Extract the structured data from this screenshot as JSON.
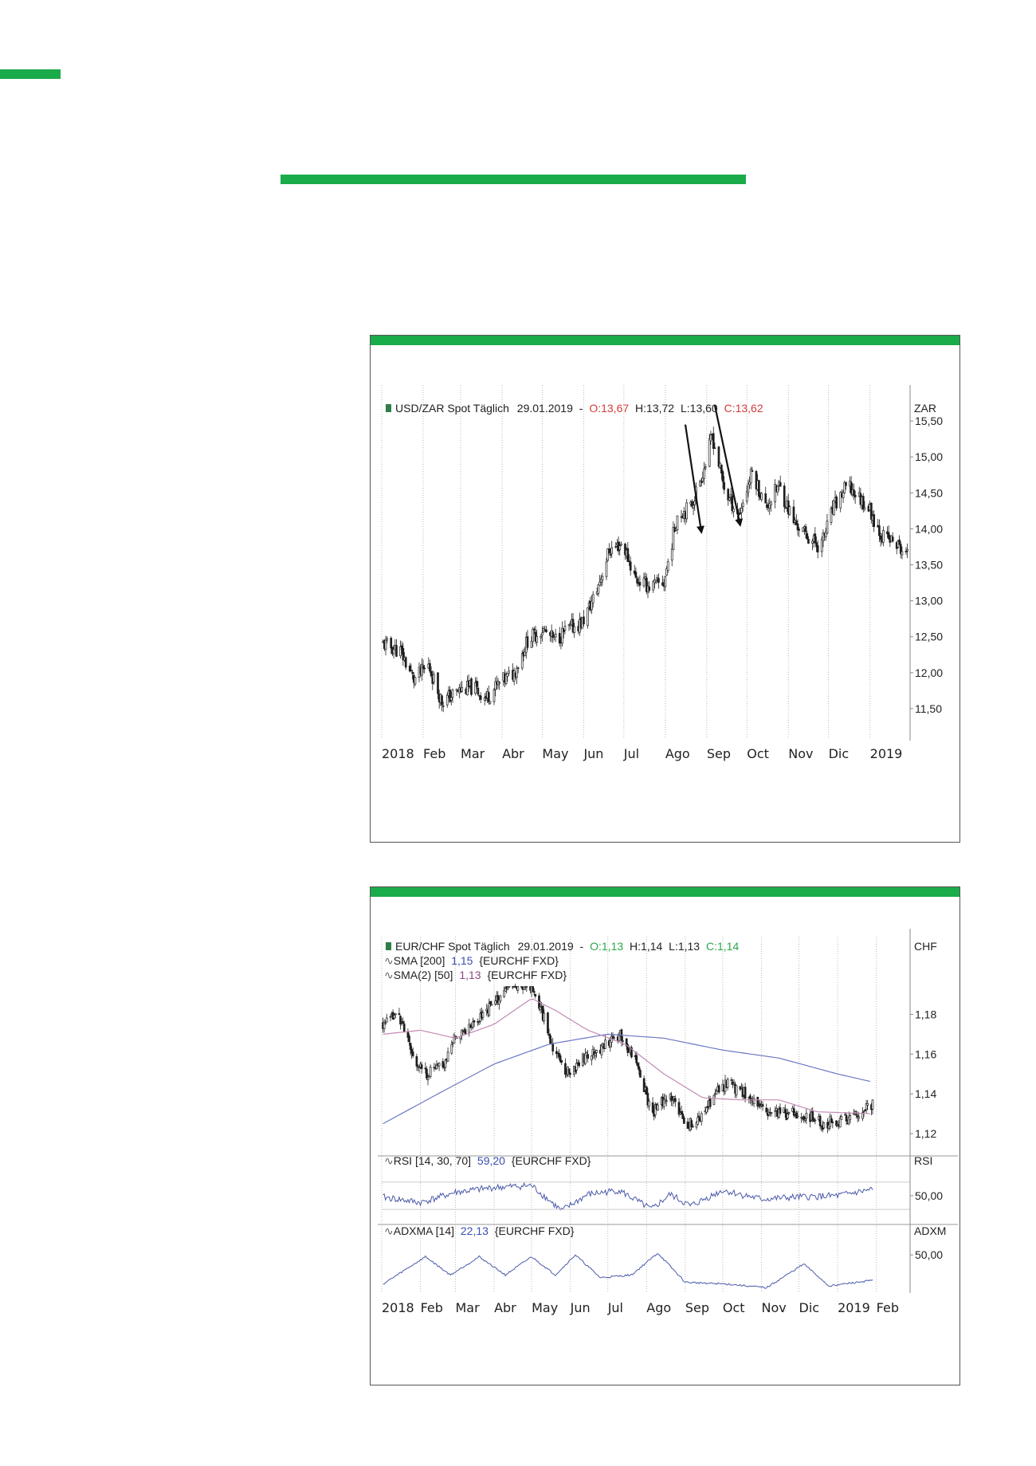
{
  "colors": {
    "accent": "#1aab4a",
    "up": "#1f1f1f",
    "down": "#1f1f1f",
    "sma200": "#6b78c4",
    "sma50": "#c48ab4",
    "rsi": "#4b5aa8",
    "adx": "#4b5aa8",
    "red": "#d23c3c",
    "green": "#2aa84a"
  },
  "chart_data": [
    {
      "type": "candlestick",
      "legend": {
        "name": "USD/ZAR Spot Täglich",
        "date": "29.01.2019",
        "sep": "-",
        "open": "O:13,67",
        "high": "H:13,72",
        "low": "L:13,60",
        "close": "C:13,62"
      },
      "unit": "ZAR",
      "yticks": [
        "15,50",
        "15,00",
        "14,50",
        "14,00",
        "13,50",
        "13,00",
        "12,50",
        "12,00",
        "11,50"
      ],
      "ytick_values": [
        15.5,
        15.0,
        14.5,
        14.0,
        13.5,
        13.0,
        12.5,
        12.0,
        11.5
      ],
      "ylim": [
        11.1,
        16.0
      ],
      "xticks": [
        "2018",
        "Feb",
        "Mar",
        "Abr",
        "May",
        "Jun",
        "Jul",
        "Ago",
        "Sep",
        "Oct",
        "Nov",
        "Dic",
        "2019"
      ],
      "series_close_approx": [
        [
          "2018-01-02",
          12.4
        ],
        [
          "2018-01-15",
          12.3
        ],
        [
          "2018-01-25",
          11.9
        ],
        [
          "2018-02-05",
          12.1
        ],
        [
          "2018-02-15",
          11.6
        ],
        [
          "2018-02-28",
          11.75
        ],
        [
          "2018-03-10",
          11.8
        ],
        [
          "2018-03-20",
          11.65
        ],
        [
          "2018-03-30",
          11.85
        ],
        [
          "2018-04-10",
          12.0
        ],
        [
          "2018-04-20",
          12.45
        ],
        [
          "2018-05-01",
          12.6
        ],
        [
          "2018-05-10",
          12.45
        ],
        [
          "2018-05-20",
          12.6
        ],
        [
          "2018-05-31",
          12.7
        ],
        [
          "2018-06-10",
          13.1
        ],
        [
          "2018-06-20",
          13.7
        ],
        [
          "2018-06-30",
          13.8
        ],
        [
          "2018-07-10",
          13.3
        ],
        [
          "2018-07-20",
          13.2
        ],
        [
          "2018-07-31",
          13.25
        ],
        [
          "2018-08-10",
          14.2
        ],
        [
          "2018-08-20",
          14.3
        ],
        [
          "2018-08-31",
          14.9
        ],
        [
          "2018-09-05",
          15.3
        ],
        [
          "2018-09-15",
          14.5
        ],
        [
          "2018-09-25",
          14.2
        ],
        [
          "2018-10-05",
          14.8
        ],
        [
          "2018-10-15",
          14.3
        ],
        [
          "2018-10-25",
          14.6
        ],
        [
          "2018-11-05",
          14.1
        ],
        [
          "2018-11-15",
          13.9
        ],
        [
          "2018-11-25",
          13.75
        ],
        [
          "2018-12-05",
          14.3
        ],
        [
          "2018-12-15",
          14.6
        ],
        [
          "2018-12-31",
          14.3
        ],
        [
          "2019-01-10",
          13.9
        ],
        [
          "2019-01-20",
          13.8
        ],
        [
          "2019-01-29",
          13.62
        ]
      ],
      "annotations": [
        {
          "type": "arrow",
          "from": [
            "2018-08-16",
            15.45
          ],
          "to": [
            "2018-08-28",
            13.95
          ]
        },
        {
          "type": "arrow",
          "from": [
            "2018-09-07",
            15.72
          ],
          "to": [
            "2018-09-26",
            14.05
          ]
        }
      ]
    },
    {
      "type": "candlestick",
      "legend": {
        "name": "EUR/CHF Spot Täglich",
        "date": "29.01.2019",
        "sep": "-",
        "open": "O:1,13",
        "high": "H:1,14",
        "low": "L:1,13",
        "close": "C:1,14"
      },
      "overlays": [
        {
          "name": "SMA [200]",
          "value": "1,15",
          "suffix": "{EURCHF FXD}"
        },
        {
          "name": "SMA(2) [50]",
          "value": "1,13",
          "suffix": "{EURCHF FXD}"
        }
      ],
      "unit": "CHF",
      "yticks": [
        "1,18",
        "1,16",
        "1,14",
        "1,12"
      ],
      "ytick_values": [
        1.18,
        1.16,
        1.14,
        1.12
      ],
      "ylim": [
        1.11,
        1.195
      ],
      "series_close_approx": [
        [
          "2018-01-02",
          1.175
        ],
        [
          "2018-01-15",
          1.18
        ],
        [
          "2018-01-25",
          1.16
        ],
        [
          "2018-02-05",
          1.15
        ],
        [
          "2018-02-20",
          1.155
        ],
        [
          "2018-03-01",
          1.17
        ],
        [
          "2018-03-15",
          1.175
        ],
        [
          "2018-03-31",
          1.185
        ],
        [
          "2018-04-15",
          1.195
        ],
        [
          "2018-04-30",
          1.195
        ],
        [
          "2018-05-10",
          1.18
        ],
        [
          "2018-05-20",
          1.16
        ],
        [
          "2018-05-31",
          1.15
        ],
        [
          "2018-06-15",
          1.16
        ],
        [
          "2018-06-30",
          1.165
        ],
        [
          "2018-07-10",
          1.17
        ],
        [
          "2018-07-25",
          1.155
        ],
        [
          "2018-08-05",
          1.13
        ],
        [
          "2018-08-20",
          1.14
        ],
        [
          "2018-08-31",
          1.125
        ],
        [
          "2018-09-10",
          1.125
        ],
        [
          "2018-09-25",
          1.14
        ],
        [
          "2018-10-05",
          1.145
        ],
        [
          "2018-10-20",
          1.14
        ],
        [
          "2018-11-05",
          1.13
        ],
        [
          "2018-11-20",
          1.13
        ],
        [
          "2018-12-05",
          1.13
        ],
        [
          "2018-12-20",
          1.125
        ],
        [
          "2019-01-10",
          1.128
        ],
        [
          "2019-01-29",
          1.135
        ]
      ],
      "sma200_approx": [
        [
          "2018-01-02",
          1.125
        ],
        [
          "2018-02-15",
          1.14
        ],
        [
          "2018-04-01",
          1.155
        ],
        [
          "2018-05-15",
          1.165
        ],
        [
          "2018-07-01",
          1.17
        ],
        [
          "2018-08-15",
          1.168
        ],
        [
          "2018-10-01",
          1.162
        ],
        [
          "2018-11-15",
          1.158
        ],
        [
          "2019-01-01",
          1.15
        ],
        [
          "2019-01-29",
          1.146
        ]
      ],
      "sma50_approx": [
        [
          "2018-01-02",
          1.17
        ],
        [
          "2018-02-01",
          1.172
        ],
        [
          "2018-03-01",
          1.168
        ],
        [
          "2018-04-01",
          1.175
        ],
        [
          "2018-05-01",
          1.188
        ],
        [
          "2018-05-20",
          1.182
        ],
        [
          "2018-06-15",
          1.172
        ],
        [
          "2018-07-15",
          1.165
        ],
        [
          "2018-08-15",
          1.15
        ],
        [
          "2018-09-15",
          1.138
        ],
        [
          "2018-10-15",
          1.137
        ],
        [
          "2018-11-15",
          1.137
        ],
        [
          "2018-12-15",
          1.131
        ],
        [
          "2019-01-29",
          1.13
        ]
      ],
      "sub_panels": [
        {
          "name": "RSI [14, 30, 70]",
          "value": "59,20",
          "suffix": "{EURCHF FXD}",
          "unit": "RSI",
          "yticks": [
            "50,00"
          ],
          "ytick_values": [
            50
          ],
          "ylim": [
            15,
            85
          ],
          "series_approx": [
            [
              "2018-01-02",
              48
            ],
            [
              "2018-02-01",
              40
            ],
            [
              "2018-03-01",
              55
            ],
            [
              "2018-04-01",
              62
            ],
            [
              "2018-05-01",
              65
            ],
            [
              "2018-05-25",
              28
            ],
            [
              "2018-06-15",
              52
            ],
            [
              "2018-07-10",
              58
            ],
            [
              "2018-08-05",
              30
            ],
            [
              "2018-08-20",
              52
            ],
            [
              "2018-09-05",
              35
            ],
            [
              "2018-10-01",
              58
            ],
            [
              "2018-11-01",
              45
            ],
            [
              "2018-12-01",
              48
            ],
            [
              "2019-01-01",
              50
            ],
            [
              "2019-01-29",
              59.2
            ]
          ]
        },
        {
          "name": "ADXMA [14]",
          "value": "22,13",
          "suffix": "{EURCHF FXD}",
          "unit": "ADXM",
          "yticks": [
            "50,00"
          ],
          "ytick_values": [
            50
          ],
          "ylim": [
            10,
            65
          ],
          "series_approx": [
            [
              "2018-01-02",
              18
            ],
            [
              "2018-02-05",
              48
            ],
            [
              "2018-02-25",
              28
            ],
            [
              "2018-03-20",
              48
            ],
            [
              "2018-04-10",
              28
            ],
            [
              "2018-05-01",
              48
            ],
            [
              "2018-05-20",
              28
            ],
            [
              "2018-06-05",
              50
            ],
            [
              "2018-06-25",
              25
            ],
            [
              "2018-07-20",
              28
            ],
            [
              "2018-08-10",
              52
            ],
            [
              "2018-09-01",
              20
            ],
            [
              "2018-10-05",
              18
            ],
            [
              "2018-11-05",
              14
            ],
            [
              "2018-12-05",
              40
            ],
            [
              "2018-12-25",
              16
            ],
            [
              "2019-01-29",
              22.13
            ]
          ]
        }
      ],
      "xticks": [
        "2018",
        "Feb",
        "Mar",
        "Abr",
        "May",
        "Jun",
        "Jul",
        "Ago",
        "Sep",
        "Oct",
        "Nov",
        "Dic",
        "2019",
        "Feb"
      ]
    }
  ]
}
